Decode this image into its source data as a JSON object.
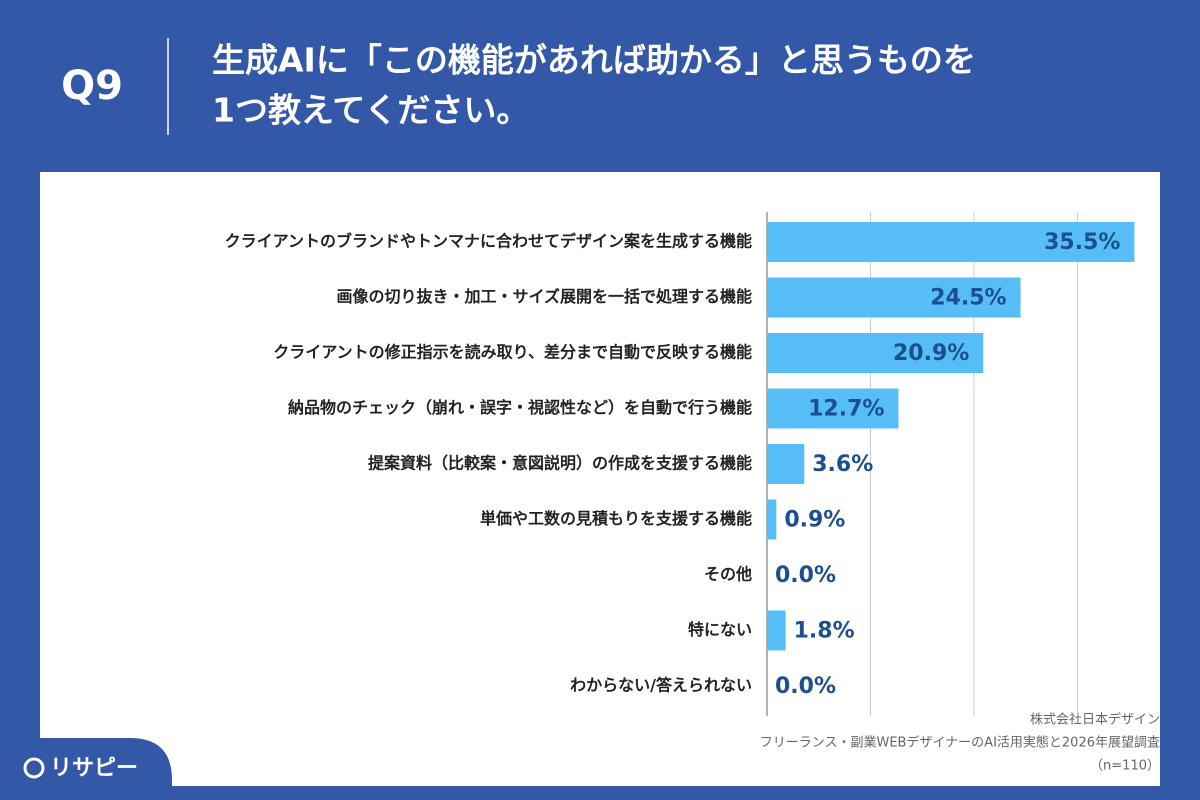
{
  "question_number": "Q9",
  "title": [
    "生成AIに「この機能があれば助かる」と思うものを",
    "1つ教えてください。"
  ],
  "chart_data": {
    "type": "bar",
    "orientation": "horizontal",
    "categories": [
      "クライアントのブランドやトンマナに合わせてデザイン案を生成する機能",
      "画像の切り抜き・加工・サイズ展開を一括で処理する機能",
      "クライアントの修正指示を読み取り、差分まで自動で反映する機能",
      "納品物のチェック（崩れ・誤字・視認性など）を自動で行う機能",
      "提案資料（比較案・意図説明）の作成を支援する機能",
      "単価や工数の見積もりを支援する機能",
      "その他",
      "特にない",
      "わからない/答えられない"
    ],
    "values": [
      35.5,
      24.5,
      20.9,
      12.7,
      3.6,
      0.9,
      0.0,
      1.8,
      0.0
    ],
    "value_labels": [
      "35.5%",
      "24.5%",
      "20.9%",
      "12.7%",
      "3.6%",
      "0.9%",
      "0.0%",
      "1.8%",
      "0.0%"
    ],
    "color": "#56bdf7",
    "xlim": [
      0,
      40
    ],
    "xticks": [
      0,
      10,
      20,
      30
    ],
    "grid": true
  },
  "footer": {
    "company": "株式会社日本デザイン",
    "survey": "フリーランス・副業WEBデザイナーのAI活用実態と2026年展望調査",
    "sample": "（n=110）"
  },
  "logo": "リサピー"
}
